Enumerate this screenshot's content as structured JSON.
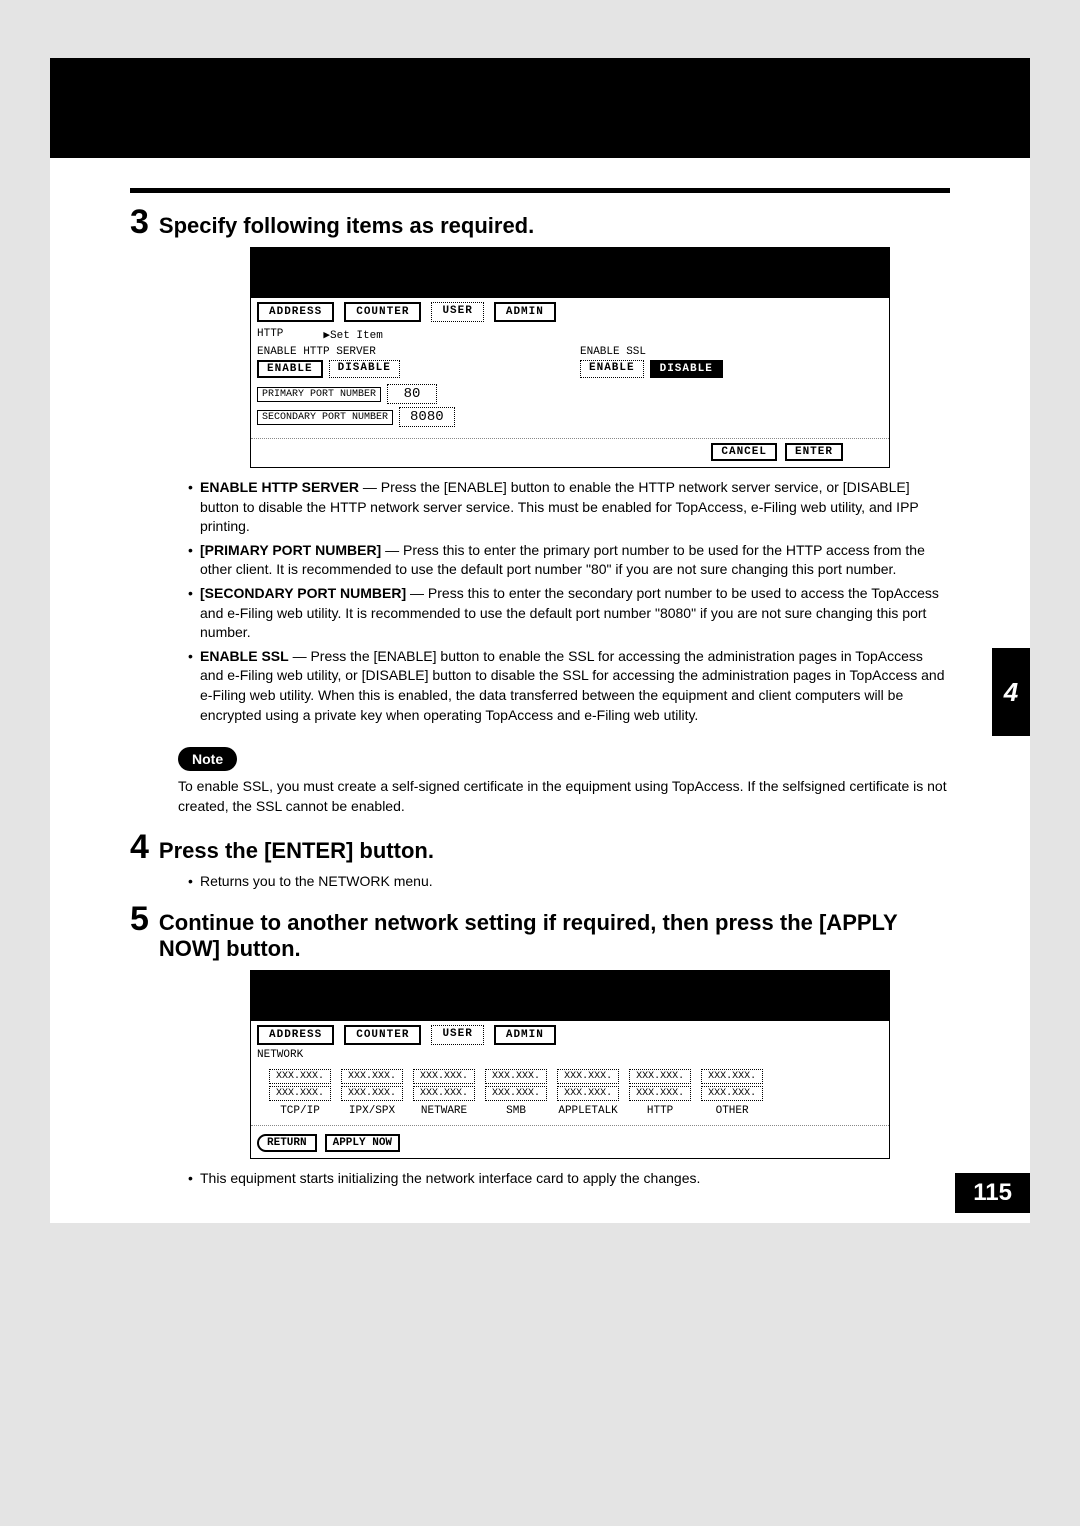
{
  "page_number": "115",
  "chapter_tab": "4",
  "step3": {
    "num": "3",
    "title": "Specify following items as required.",
    "screenshot": {
      "tabs": [
        "ADDRESS",
        "COUNTER",
        "USER",
        "ADMIN"
      ],
      "breadcrumb_left": "HTTP",
      "breadcrumb_right": "▶Set Item",
      "left_section_label": "ENABLE HTTP SERVER",
      "right_section_label": "ENABLE SSL",
      "enable": "ENABLE",
      "disable": "DISABLE",
      "primary_port_label": "PRIMARY PORT NUMBER",
      "primary_port_value": "80",
      "secondary_port_label": "SECONDARY PORT NUMBER",
      "secondary_port_value": "8080",
      "cancel": "CANCEL",
      "enter": "ENTER"
    },
    "bullets": [
      {
        "lead": "ENABLE HTTP SERVER",
        "text": " — Press the [ENABLE] button to enable the HTTP network server service, or [DISABLE] button to disable the HTTP network server service.  This must be enabled for TopAccess, e-Filing web utility, and IPP printing."
      },
      {
        "lead": "[PRIMARY PORT NUMBER]",
        "text": " — Press this to enter the primary port number to be used for the HTTP access from the other client.  It is recommended to use the default port number \"80\" if you are not sure changing this port number."
      },
      {
        "lead": "[SECONDARY PORT NUMBER]",
        "text": " — Press this to enter the secondary port number to be used to access the TopAccess and e-Filing web utility. It is recommended to use the default port number \"8080\" if you are not sure changing this port number."
      },
      {
        "lead": "ENABLE SSL",
        "text": " — Press the [ENABLE] button to enable the SSL for accessing the administration pages in TopAccess and e-Filing web utility, or [DISABLE] button to disable the SSL for accessing the administration pages in TopAccess and e-Filing web utility.  When this is enabled, the data transferred between the equipment and client computers will be encrypted using a private key when operating TopAccess and e-Filing web utility."
      }
    ],
    "note_label": "Note",
    "note_text": "To enable SSL, you must create a self-signed certificate in the equipment using TopAccess. If the selfsigned certificate is not created, the SSL cannot be enabled."
  },
  "step4": {
    "num": "4",
    "title": "Press the [ENTER] button.",
    "bullet": "Returns you to the NETWORK menu."
  },
  "step5": {
    "num": "5",
    "title": "Continue to another network setting if required, then press the [APPLY NOW] button.",
    "screenshot": {
      "tabs": [
        "ADDRESS",
        "COUNTER",
        "USER",
        "ADMIN"
      ],
      "header": "NETWORK",
      "placeholder": "XXX.XXX.",
      "cols": [
        "TCP/IP",
        "IPX/SPX",
        "NETWARE",
        "SMB",
        "APPLETALK",
        "HTTP",
        "OTHER"
      ],
      "return": "RETURN",
      "apply_now": "APPLY NOW"
    },
    "bullet": "This equipment starts initializing the network interface card to apply the changes."
  }
}
